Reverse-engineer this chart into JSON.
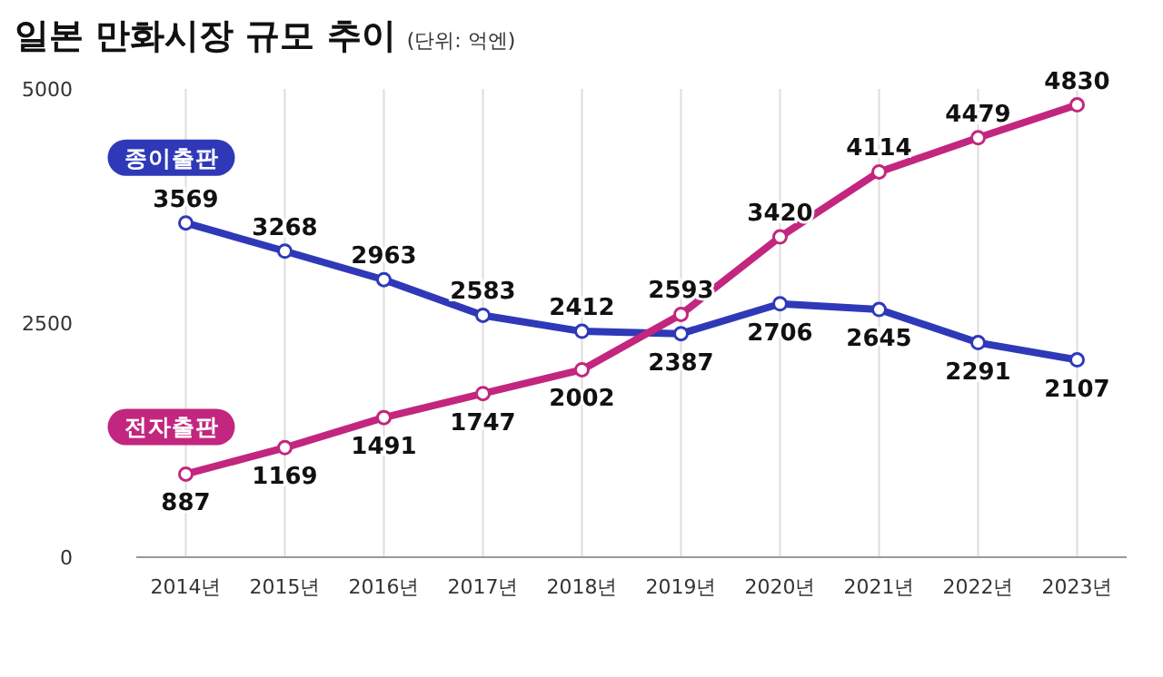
{
  "chart_data": {
    "type": "line",
    "title": "일본 만화시장 규모 추이",
    "subtitle": "(단위: 억엔)",
    "categories": [
      "2014년",
      "2015년",
      "2016년",
      "2017년",
      "2018년",
      "2019년",
      "2020년",
      "2021년",
      "2022년",
      "2023년"
    ],
    "series": [
      {
        "name": "종이출판",
        "color": "#2f39b8",
        "values": [
          3569,
          3268,
          2963,
          2583,
          2412,
          2387,
          2706,
          2645,
          2291,
          2107
        ]
      },
      {
        "name": "전자출판",
        "color": "#c2267e",
        "values": [
          887,
          1169,
          1491,
          1747,
          2002,
          2593,
          3420,
          4114,
          4479,
          4830
        ]
      }
    ],
    "ylim": [
      0,
      5000
    ],
    "yticks": [
      0,
      2500,
      5000
    ],
    "grid": "x",
    "marker": "circle",
    "line_style": "solid",
    "data_labels": true
  }
}
